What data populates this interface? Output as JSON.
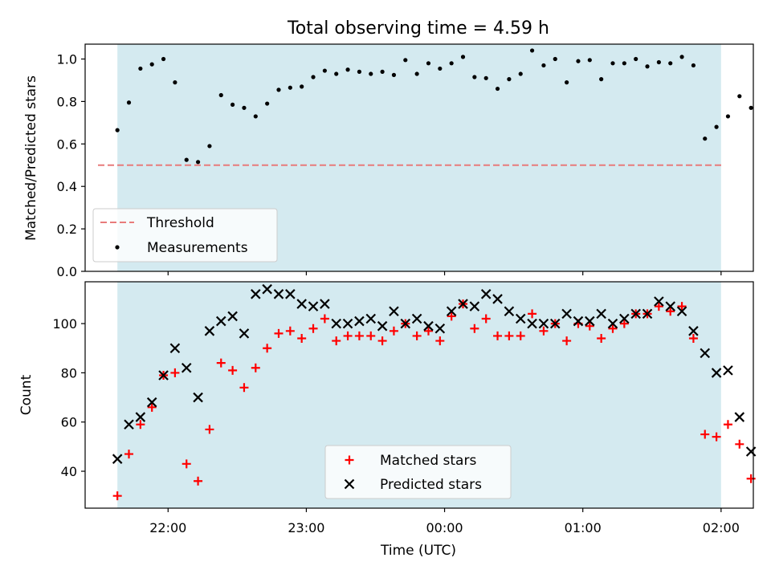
{
  "title": "Total observing time = 4.59 h",
  "xlabel": "Time (UTC)",
  "colors": {
    "shade": "#d4eaf0",
    "threshold": "#e87b7b",
    "measurement": "#000000",
    "matched": "#ff0000",
    "predicted": "#000000"
  },
  "chart_data": [
    {
      "type": "scatter",
      "ylabel": "Matched/Predicted stars",
      "xlim": [
        "21:24",
        "02:14"
      ],
      "ylim": [
        0,
        1.07
      ],
      "yticks": [
        "0.0",
        "0.2",
        "0.4",
        "0.6",
        "0.8",
        "1.0"
      ],
      "xticks": [
        "22:00",
        "23:00",
        "00:00",
        "01:00",
        "02:00"
      ],
      "shaded_range": [
        "21:38",
        "02:00"
      ],
      "grid": false,
      "legend_position": "lower-left",
      "threshold": {
        "name": "Threshold",
        "value": 0.5,
        "style": "dashed"
      },
      "series": [
        {
          "name": "Measurements",
          "marker": "dot",
          "points": [
            [
              "21:38",
              0.665
            ],
            [
              "21:43",
              0.795
            ],
            [
              "21:48",
              0.955
            ],
            [
              "21:53",
              0.975
            ],
            [
              "21:58",
              1.0
            ],
            [
              "22:03",
              0.89
            ],
            [
              "22:08",
              0.525
            ],
            [
              "22:13",
              0.515
            ],
            [
              "22:18",
              0.59
            ],
            [
              "22:23",
              0.83
            ],
            [
              "22:28",
              0.785
            ],
            [
              "22:33",
              0.77
            ],
            [
              "22:38",
              0.73
            ],
            [
              "22:43",
              0.79
            ],
            [
              "22:48",
              0.855
            ],
            [
              "22:53",
              0.865
            ],
            [
              "22:58",
              0.87
            ],
            [
              "23:03",
              0.915
            ],
            [
              "23:08",
              0.945
            ],
            [
              "23:13",
              0.93
            ],
            [
              "23:18",
              0.95
            ],
            [
              "23:23",
              0.94
            ],
            [
              "23:28",
              0.93
            ],
            [
              "23:33",
              0.94
            ],
            [
              "23:38",
              0.925
            ],
            [
              "23:43",
              0.995
            ],
            [
              "23:48",
              0.93
            ],
            [
              "23:53",
              0.98
            ],
            [
              "23:58",
              0.955
            ],
            [
              "00:03",
              0.98
            ],
            [
              "00:08",
              1.01
            ],
            [
              "00:13",
              0.915
            ],
            [
              "00:18",
              0.91
            ],
            [
              "00:23",
              0.86
            ],
            [
              "00:28",
              0.905
            ],
            [
              "00:33",
              0.93
            ],
            [
              "00:38",
              1.04
            ],
            [
              "00:43",
              0.97
            ],
            [
              "00:48",
              1.0
            ],
            [
              "00:53",
              0.89
            ],
            [
              "00:58",
              0.99
            ],
            [
              "01:03",
              0.995
            ],
            [
              "01:08",
              0.905
            ],
            [
              "01:13",
              0.98
            ],
            [
              "01:18",
              0.98
            ],
            [
              "01:23",
              1.0
            ],
            [
              "01:28",
              0.965
            ],
            [
              "01:33",
              0.985
            ],
            [
              "01:38",
              0.98
            ],
            [
              "01:43",
              1.01
            ],
            [
              "01:48",
              0.97
            ],
            [
              "01:53",
              0.625
            ],
            [
              "01:58",
              0.68
            ],
            [
              "02:03",
              0.73
            ],
            [
              "02:08",
              0.825
            ],
            [
              "02:13",
              0.77
            ]
          ]
        }
      ]
    },
    {
      "type": "scatter",
      "ylabel": "Count",
      "xlim": [
        "21:24",
        "02:14"
      ],
      "ylim": [
        25,
        117
      ],
      "yticks": [
        "40",
        "60",
        "80",
        "100"
      ],
      "xticks": [
        "22:00",
        "23:00",
        "00:00",
        "01:00",
        "02:00"
      ],
      "shaded_range": [
        "21:38",
        "02:00"
      ],
      "grid": false,
      "legend_position": "lower-center",
      "series": [
        {
          "name": "Matched stars",
          "marker": "plus",
          "points": [
            [
              "21:38",
              30
            ],
            [
              "21:43",
              47
            ],
            [
              "21:48",
              59
            ],
            [
              "21:53",
              66
            ],
            [
              "21:58",
              79
            ],
            [
              "22:03",
              80
            ],
            [
              "22:08",
              43
            ],
            [
              "22:13",
              36
            ],
            [
              "22:18",
              57
            ],
            [
              "22:23",
              84
            ],
            [
              "22:28",
              81
            ],
            [
              "22:33",
              74
            ],
            [
              "22:38",
              82
            ],
            [
              "22:43",
              90
            ],
            [
              "22:48",
              96
            ],
            [
              "22:53",
              97
            ],
            [
              "22:58",
              94
            ],
            [
              "23:03",
              98
            ],
            [
              "23:08",
              102
            ],
            [
              "23:13",
              93
            ],
            [
              "23:18",
              95
            ],
            [
              "23:23",
              95
            ],
            [
              "23:28",
              95
            ],
            [
              "23:33",
              93
            ],
            [
              "23:38",
              97
            ],
            [
              "23:43",
              100
            ],
            [
              "23:48",
              95
            ],
            [
              "23:53",
              97
            ],
            [
              "23:58",
              93
            ],
            [
              "00:03",
              103
            ],
            [
              "00:08",
              108
            ],
            [
              "00:13",
              98
            ],
            [
              "00:18",
              102
            ],
            [
              "00:23",
              95
            ],
            [
              "00:28",
              95
            ],
            [
              "00:33",
              95
            ],
            [
              "00:38",
              104
            ],
            [
              "00:43",
              97
            ],
            [
              "00:48",
              100
            ],
            [
              "00:53",
              93
            ],
            [
              "00:58",
              100
            ],
            [
              "01:03",
              99
            ],
            [
              "01:08",
              94
            ],
            [
              "01:13",
              98
            ],
            [
              "01:18",
              100
            ],
            [
              "01:23",
              104
            ],
            [
              "01:28",
              104
            ],
            [
              "01:33",
              107
            ],
            [
              "01:38",
              105
            ],
            [
              "01:43",
              107
            ],
            [
              "01:48",
              94
            ],
            [
              "01:53",
              55
            ],
            [
              "01:58",
              54
            ],
            [
              "02:03",
              59
            ],
            [
              "02:08",
              51
            ],
            [
              "02:13",
              37
            ]
          ]
        },
        {
          "name": "Predicted stars",
          "marker": "x",
          "points": [
            [
              "21:38",
              45
            ],
            [
              "21:43",
              59
            ],
            [
              "21:48",
              62
            ],
            [
              "21:53",
              68
            ],
            [
              "21:58",
              79
            ],
            [
              "22:03",
              90
            ],
            [
              "22:08",
              82
            ],
            [
              "22:13",
              70
            ],
            [
              "22:18",
              97
            ],
            [
              "22:23",
              101
            ],
            [
              "22:28",
              103
            ],
            [
              "22:33",
              96
            ],
            [
              "22:38",
              112
            ],
            [
              "22:43",
              114
            ],
            [
              "22:48",
              112
            ],
            [
              "22:53",
              112
            ],
            [
              "22:58",
              108
            ],
            [
              "23:03",
              107
            ],
            [
              "23:08",
              108
            ],
            [
              "23:13",
              100
            ],
            [
              "23:18",
              100
            ],
            [
              "23:23",
              101
            ],
            [
              "23:28",
              102
            ],
            [
              "23:33",
              99
            ],
            [
              "23:38",
              105
            ],
            [
              "23:43",
              100
            ],
            [
              "23:48",
              102
            ],
            [
              "23:53",
              99
            ],
            [
              "23:58",
              98
            ],
            [
              "00:03",
              105
            ],
            [
              "00:08",
              108
            ],
            [
              "00:13",
              107
            ],
            [
              "00:18",
              112
            ],
            [
              "00:23",
              110
            ],
            [
              "00:28",
              105
            ],
            [
              "00:33",
              102
            ],
            [
              "00:38",
              100
            ],
            [
              "00:43",
              100
            ],
            [
              "00:48",
              100
            ],
            [
              "00:53",
              104
            ],
            [
              "00:58",
              101
            ],
            [
              "01:03",
              101
            ],
            [
              "01:08",
              104
            ],
            [
              "01:13",
              100
            ],
            [
              "01:18",
              102
            ],
            [
              "01:23",
              104
            ],
            [
              "01:28",
              104
            ],
            [
              "01:33",
              109
            ],
            [
              "01:38",
              107
            ],
            [
              "01:43",
              105
            ],
            [
              "01:48",
              97
            ],
            [
              "01:53",
              88
            ],
            [
              "01:58",
              80
            ],
            [
              "02:03",
              81
            ],
            [
              "02:08",
              62
            ],
            [
              "02:13",
              48
            ]
          ]
        }
      ]
    }
  ]
}
